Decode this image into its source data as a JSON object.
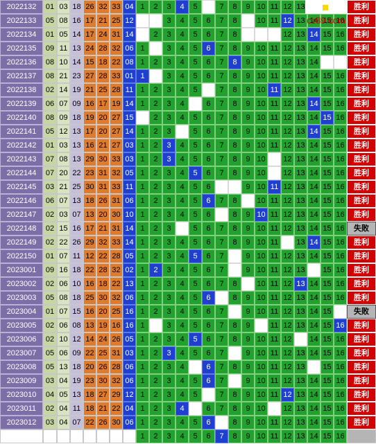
{
  "watermark": "cz89.com",
  "colors": {
    "period_bg": "#7d6ea8",
    "hit_bg": "#1e3fcf",
    "grid_bg": "#22a12e",
    "win_bg": "#d40000",
    "lose_bg": "#b5b5b5",
    "orange": "#e07b2c",
    "lavender": "#c6bfd9",
    "olive": "#c7d7a3"
  },
  "labels": {
    "win": "胜利",
    "lose": "失败"
  },
  "chart_data": {
    "type": "table",
    "columns": [
      "period",
      "red1",
      "red2",
      "red3",
      "red4",
      "red5",
      "red6",
      "blue",
      "blue_trend_1_16",
      "result"
    ],
    "rows": [
      {
        "period": "2022132",
        "reds": [
          "01",
          "03",
          "18",
          "26",
          "32",
          "33"
        ],
        "blue": "04",
        "result": "win",
        "blanks": [
          4,
          6
        ],
        "marks": [
          4
        ]
      },
      {
        "period": "2022133",
        "reds": [
          "05",
          "08",
          "16",
          "17",
          "21",
          "25"
        ],
        "blue": "12",
        "result": "win",
        "blanks": [
          1,
          2,
          9,
          12
        ],
        "marks": [
          12
        ]
      },
      {
        "period": "2022134",
        "reds": [
          "01",
          "05",
          "14",
          "17",
          "24",
          "31"
        ],
        "blue": "14",
        "result": "win",
        "blanks": [
          1,
          9,
          10,
          11,
          14
        ],
        "marks": [
          14
        ]
      },
      {
        "period": "2022135",
        "reds": [
          "09",
          "11",
          "13",
          "24",
          "28",
          "32"
        ],
        "blue": "06",
        "result": "win",
        "blanks": [
          2,
          6
        ],
        "marks": [
          6
        ]
      },
      {
        "period": "2022136",
        "reds": [
          "08",
          "10",
          "14",
          "15",
          "18",
          "22"
        ],
        "blue": "08",
        "result": "win",
        "blanks": [
          8,
          15,
          16
        ],
        "marks": [
          8
        ]
      },
      {
        "period": "2022137",
        "reds": [
          "08",
          "21",
          "23",
          "27",
          "28",
          "33"
        ],
        "blue": "01",
        "result": "win",
        "blanks": [
          1,
          2
        ],
        "marks": [
          1
        ]
      },
      {
        "period": "2022138",
        "reds": [
          "02",
          "14",
          "19",
          "21",
          "25",
          "28"
        ],
        "blue": "11",
        "result": "win",
        "blanks": [
          6,
          11
        ],
        "marks": [
          11
        ]
      },
      {
        "period": "2022139",
        "reds": [
          "06",
          "07",
          "09",
          "16",
          "17",
          "19"
        ],
        "blue": "14",
        "result": "win",
        "blanks": [
          5,
          14
        ],
        "marks": [
          14
        ]
      },
      {
        "period": "2022140",
        "reds": [
          "08",
          "09",
          "18",
          "19",
          "20",
          "27"
        ],
        "blue": "15",
        "result": "win",
        "blanks": [
          1,
          15
        ],
        "marks": [
          15
        ]
      },
      {
        "period": "2022141",
        "reds": [
          "05",
          "12",
          "13",
          "17",
          "20",
          "27"
        ],
        "blue": "14",
        "result": "win",
        "blanks": [
          4,
          14
        ],
        "marks": [
          14
        ]
      },
      {
        "period": "2022142",
        "reds": [
          "01",
          "03",
          "13",
          "16",
          "21",
          "27"
        ],
        "blue": "03",
        "result": "win",
        "blanks": [
          3
        ],
        "marks": [
          3
        ]
      },
      {
        "period": "2022143",
        "reds": [
          "07",
          "08",
          "13",
          "29",
          "30",
          "33"
        ],
        "blue": "03",
        "result": "win",
        "blanks": [
          3,
          11
        ],
        "marks": [
          3
        ]
      },
      {
        "period": "2022144",
        "reds": [
          "07",
          "20",
          "22",
          "23",
          "31",
          "32"
        ],
        "blue": "05",
        "result": "win",
        "blanks": [
          5,
          11
        ],
        "marks": [
          5
        ]
      },
      {
        "period": "2022145",
        "reds": [
          "03",
          "21",
          "25",
          "30",
          "31",
          "33"
        ],
        "blue": "11",
        "result": "win",
        "blanks": [
          7,
          8,
          11
        ],
        "marks": [
          11
        ]
      },
      {
        "period": "2022146",
        "reds": [
          "06",
          "07",
          "13",
          "18",
          "26",
          "31"
        ],
        "blue": "06",
        "result": "win",
        "blanks": [
          6,
          9
        ],
        "marks": [
          6
        ]
      },
      {
        "period": "2022147",
        "reds": [
          "02",
          "03",
          "07",
          "13",
          "20",
          "30"
        ],
        "blue": "10",
        "result": "win",
        "blanks": [
          7,
          10
        ],
        "marks": [
          10
        ]
      },
      {
        "period": "2022148",
        "reds": [
          "02",
          "15",
          "16",
          "17",
          "21",
          "31"
        ],
        "blue": "14",
        "result": "lose",
        "blanks": [
          4
        ],
        "marks": []
      },
      {
        "period": "2022149",
        "reds": [
          "02",
          "22",
          "26",
          "29",
          "32",
          "33"
        ],
        "blue": "14",
        "result": "win",
        "blanks": [
          12,
          14
        ],
        "marks": [
          14
        ]
      },
      {
        "period": "2022150",
        "reds": [
          "01",
          "07",
          "11",
          "12",
          "22",
          "28"
        ],
        "blue": "05",
        "result": "win",
        "blanks": [
          5,
          8
        ],
        "marks": [
          5
        ]
      },
      {
        "period": "2023001",
        "reds": [
          "09",
          "16",
          "18",
          "22",
          "28",
          "32"
        ],
        "blue": "02",
        "result": "win",
        "blanks": [
          2,
          8,
          14
        ],
        "marks": [
          2
        ]
      },
      {
        "period": "2023002",
        "reds": [
          "02",
          "06",
          "10",
          "16",
          "18",
          "22"
        ],
        "blue": "13",
        "result": "win",
        "blanks": [
          9,
          13
        ],
        "marks": [
          13
        ]
      },
      {
        "period": "2023003",
        "reds": [
          "05",
          "08",
          "18",
          "25",
          "30",
          "32"
        ],
        "blue": "06",
        "result": "win",
        "blanks": [
          6,
          7
        ],
        "marks": [
          6
        ]
      },
      {
        "period": "2023004",
        "reds": [
          "01",
          "07",
          "15",
          "16",
          "20",
          "25"
        ],
        "blue": "16",
        "result": "lose",
        "blanks": [
          8,
          16
        ],
        "marks": []
      },
      {
        "period": "2023005",
        "reds": [
          "02",
          "06",
          "08",
          "13",
          "19",
          "16"
        ],
        "blue": "16",
        "result": "win",
        "blanks": [
          2,
          10,
          16
        ],
        "marks": [
          16
        ]
      },
      {
        "period": "2023006",
        "reds": [
          "02",
          "10",
          "12",
          "14",
          "24",
          "26"
        ],
        "blue": "05",
        "result": "win",
        "blanks": [
          5,
          13
        ],
        "marks": [
          5
        ]
      },
      {
        "period": "2023007",
        "reds": [
          "05",
          "06",
          "09",
          "22",
          "25",
          "31"
        ],
        "blue": "03",
        "result": "win",
        "blanks": [
          3,
          8
        ],
        "marks": [
          3
        ]
      },
      {
        "period": "2023008",
        "reds": [
          "05",
          "13",
          "18",
          "20",
          "26",
          "28"
        ],
        "blue": "06",
        "result": "win",
        "blanks": [
          5,
          6,
          14
        ],
        "marks": [
          6
        ]
      },
      {
        "period": "2023009",
        "reds": [
          "03",
          "04",
          "19",
          "23",
          "30",
          "32"
        ],
        "blue": "06",
        "result": "win",
        "blanks": [
          6,
          8
        ],
        "marks": [
          6
        ]
      },
      {
        "period": "2023010",
        "reds": [
          "04",
          "05",
          "13",
          "18",
          "27",
          "29"
        ],
        "blue": "12",
        "result": "win",
        "blanks": [
          6,
          12
        ],
        "marks": [
          12
        ]
      },
      {
        "period": "2023011",
        "reds": [
          "02",
          "04",
          "11",
          "18",
          "21",
          "22"
        ],
        "blue": "04",
        "result": "win",
        "blanks": [
          4,
          5,
          11
        ],
        "marks": [
          4
        ]
      },
      {
        "period": "2023012",
        "reds": [
          "03",
          "04",
          "07",
          "22",
          "26",
          "30"
        ],
        "blue": "06",
        "result": "win",
        "blanks": [
          6,
          7
        ],
        "marks": [
          6
        ]
      },
      {
        "period": "",
        "reds": [
          "",
          "",
          "",
          "",
          "",
          ""
        ],
        "blue": "",
        "result": "blank",
        "blanks": [
          7
        ],
        "marks": [
          7
        ]
      }
    ]
  }
}
